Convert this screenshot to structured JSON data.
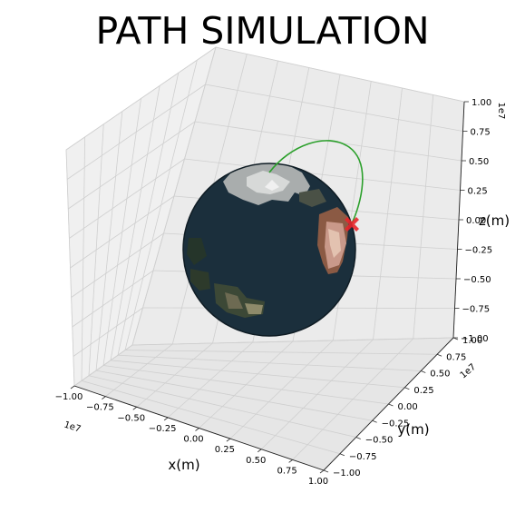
{
  "chart_data": {
    "type": "3d-surface-line",
    "title": "PATH SIMULATION",
    "xlabel": "x(m)",
    "ylabel": "y(m)",
    "zlabel": "z(m)",
    "xlim": [
      -1.0,
      1.0
    ],
    "ylim": [
      -1.0,
      1.0
    ],
    "zlim": [
      -1.0,
      1.0
    ],
    "axis_scale_offset": {
      "x": "1e7",
      "y": "1e7",
      "z": "1e7"
    },
    "xticks": [
      "−1.00",
      "−0.75",
      "−0.50",
      "−0.25",
      "0.00",
      "0.25",
      "0.50",
      "0.75",
      "1.00"
    ],
    "yticks": [
      "−1.00",
      "−0.75",
      "−0.50",
      "−0.25",
      "0.00",
      "0.25",
      "0.50",
      "0.75",
      "1.00"
    ],
    "zticks": [
      "−1.00",
      "−0.75",
      "−0.50",
      "−0.25",
      "0.00",
      "0.25",
      "0.50",
      "0.75",
      "1.00"
    ],
    "grid": true,
    "surface": {
      "shape": "sphere",
      "texture": "earth",
      "radius": 0.64,
      "ocean_color": "#1b2f3c"
    },
    "path": {
      "color": "#2ca02c",
      "end_marker": "X",
      "end_marker_color": "#e8262b"
    }
  }
}
